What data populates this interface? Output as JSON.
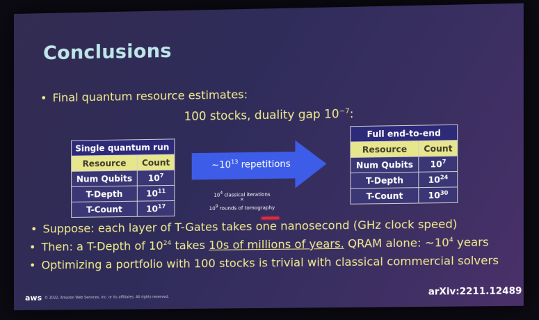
{
  "slide": {
    "title": "Conclusions",
    "bullet_main": "Final quantum resource estimates:",
    "subline_prefix": "100 stocks, duality gap 10",
    "subline_exp": "−7",
    "subline_suffix": ":"
  },
  "table_single": {
    "title": "Single quantum run",
    "col_resource": "Resource",
    "col_count": "Count",
    "rows": [
      {
        "resource": "Num Qubits",
        "base": "10",
        "exp": "7"
      },
      {
        "resource": "T-Depth",
        "base": "10",
        "exp": "11"
      },
      {
        "resource": "T-Count",
        "base": "10",
        "exp": "17"
      }
    ]
  },
  "arrow": {
    "prefix": "~10",
    "exp": "13",
    "suffix": " repetitions",
    "note1_base": "10",
    "note1_exp": "4",
    "note1_text": " classical iterations",
    "note2": "×",
    "note3_base": "10",
    "note3_exp": "9",
    "note3_text": " rounds of tomography"
  },
  "table_full": {
    "title": "Full end-to-end",
    "col_resource": "Resource",
    "col_count": "Count",
    "rows": [
      {
        "resource": "Num Qubits",
        "base": "10",
        "exp": "7"
      },
      {
        "resource": "T-Depth",
        "base": "10",
        "exp": "24"
      },
      {
        "resource": "T-Count",
        "base": "10",
        "exp": "30"
      }
    ]
  },
  "bullets": {
    "suppose": "Suppose: each layer of T-Gates takes one nanosecond (GHz clock speed)",
    "then_prefix": "Then: a T-Depth of 10",
    "then_exp": "24",
    "then_mid": " takes ",
    "then_underlined": "10s of millions of years.",
    "then_qram": " QRAM alone: ~10",
    "then_qram_exp": "4",
    "then_end": " years",
    "optimizing": "Optimizing a portfolio with 100 stocks is trivial with classical commercial solvers"
  },
  "footer": {
    "logo": "aws",
    "copyright": "© 2022, Amazon Web Services, Inc. or its affiliates. All rights reserved.",
    "arxiv": "arXiv:2211.12489"
  },
  "colors": {
    "bullet_text": "#f3ec8e",
    "title_text": "#bfe6e8",
    "table_header": "#2d2a7a",
    "table_col_header": "#e8e68c",
    "arrow": "#3d5de8"
  }
}
